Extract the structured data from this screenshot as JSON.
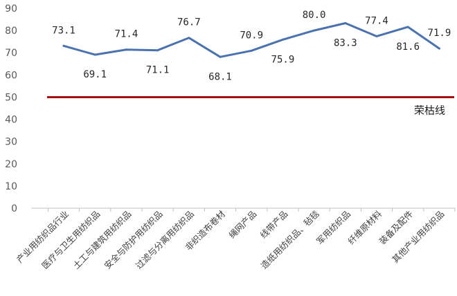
{
  "chart_data": {
    "type": "line",
    "title": "",
    "xlabel": "",
    "ylabel": "",
    "ylim": [
      0,
      90
    ],
    "yticks": [
      0,
      10,
      20,
      30,
      40,
      50,
      60,
      70,
      80,
      90
    ],
    "grid": false,
    "categories": [
      "产业用纺织品行业",
      "医疗与卫生用纺织品",
      "土工与建筑用纺织品",
      "安全与防护用纺织品",
      "过滤与分离用纺织品",
      "非织造布卷材",
      "绳网产品",
      "线带产品",
      "造纸用纺织品、毡毯",
      "军用纺织品",
      "纤维原材料",
      "装备及配件",
      "其他产业用纺织品"
    ],
    "series": [
      {
        "values": [
          73.1,
          69.1,
          71.4,
          71.1,
          76.7,
          68.1,
          70.9,
          75.9,
          80.0,
          83.3,
          77.4,
          81.6,
          71.9
        ],
        "labels": [
          "73.1",
          "69.1",
          "71.4",
          "71.1",
          "76.7",
          "68.1",
          "70.9",
          "75.9",
          "80.0",
          "83.3",
          "77.4",
          "81.6",
          "71.9"
        ],
        "label_side": [
          "above",
          "below",
          "above",
          "below",
          "above",
          "below",
          "above",
          "below",
          "above",
          "below",
          "above",
          "below",
          "above"
        ],
        "color": "#4a72b0"
      }
    ],
    "reference_line": {
      "value": 50,
      "label": "荣枯线",
      "color": "#a50f0f"
    }
  }
}
